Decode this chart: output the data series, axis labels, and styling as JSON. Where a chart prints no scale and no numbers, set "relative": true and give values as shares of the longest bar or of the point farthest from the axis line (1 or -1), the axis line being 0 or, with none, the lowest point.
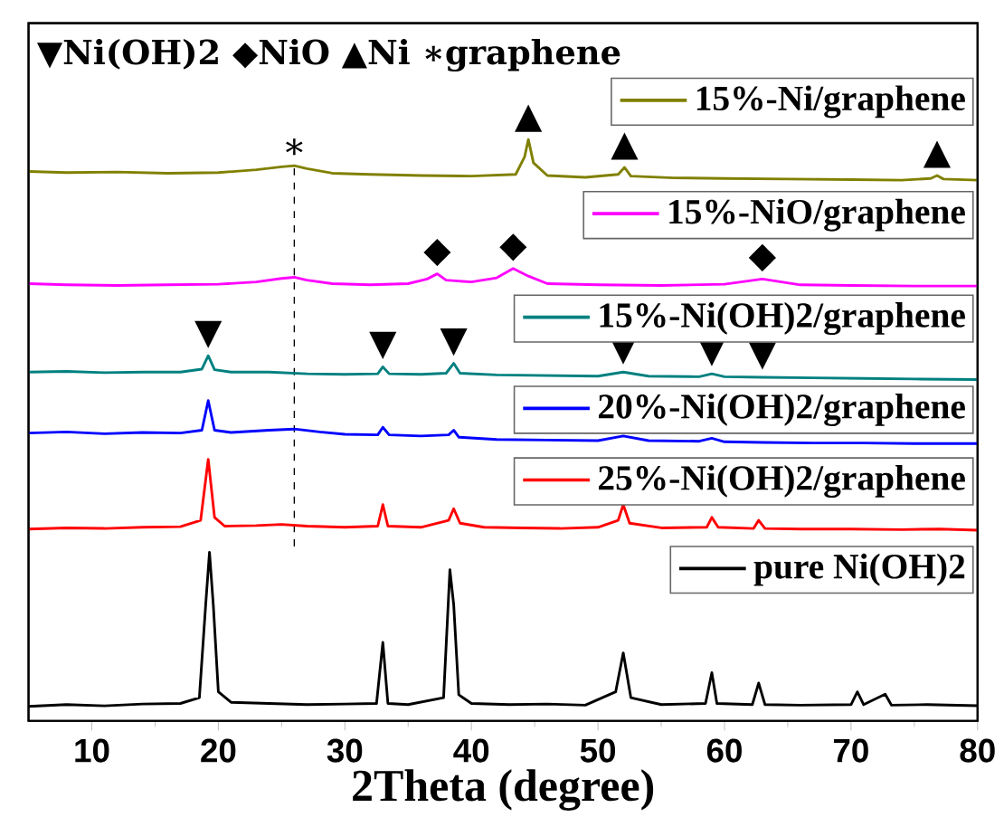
{
  "chart_data": {
    "type": "line",
    "relative": true,
    "xlabel": "2Theta (degree)",
    "xlim": [
      5,
      80
    ],
    "xticks": [
      10,
      20,
      30,
      40,
      50,
      60,
      70,
      80
    ],
    "ref_lines": [
      {
        "axis": "x",
        "value": 26,
        "line_style": "dashed",
        "color": "#000000"
      }
    ],
    "annotations": [
      "▼Ni(OH)2 ◆NiO ▲Ni ∗graphene",
      {
        "text": "∗",
        "x": 26,
        "y": 0.955
      },
      {
        "text": "▲",
        "x": 44.5,
        "y": 1.0
      },
      {
        "text": "▲",
        "x": 52.1,
        "y": 0.952
      },
      {
        "text": "▲",
        "x": 76.8,
        "y": 0.938
      },
      {
        "text": "◆",
        "x": 37.3,
        "y": 0.769
      },
      {
        "text": "◆",
        "x": 43.3,
        "y": 0.778
      },
      {
        "text": "◆",
        "x": 63,
        "y": 0.76
      },
      {
        "text": "▼",
        "x": 19.2,
        "y": 0.628
      },
      {
        "text": "▼",
        "x": 33,
        "y": 0.609
      },
      {
        "text": "▼",
        "x": 38.6,
        "y": 0.615
      },
      {
        "text": "▼",
        "x": 52,
        "y": 0.6
      },
      {
        "text": "▼",
        "x": 59,
        "y": 0.597
      },
      {
        "text": "▼",
        "x": 63,
        "y": 0.591
      }
    ],
    "legend": "right",
    "series": [
      {
        "name": "15%-Ni/graphene",
        "color": "#808000",
        "x": [
          5,
          8,
          12,
          16,
          20,
          23,
          25,
          26,
          27,
          29,
          32,
          36,
          40,
          43.5,
          44.2,
          44.5,
          44.9,
          46,
          49,
          51.6,
          52.1,
          52.6,
          56,
          60,
          65,
          70,
          74,
          76.3,
          76.8,
          77.3,
          80
        ],
        "values": [
          0.945,
          0.943,
          0.944,
          0.942,
          0.943,
          0.948,
          0.953,
          0.955,
          0.95,
          0.942,
          0.94,
          0.938,
          0.937,
          0.94,
          0.97,
          1.0,
          0.96,
          0.938,
          0.935,
          0.94,
          0.952,
          0.937,
          0.934,
          0.933,
          0.932,
          0.931,
          0.93,
          0.933,
          0.938,
          0.932,
          0.93
        ]
      },
      {
        "name": "15%-NiO/graphene",
        "color": "#ff00ff",
        "x": [
          5,
          8,
          12,
          16,
          20,
          23,
          25,
          26,
          27,
          29,
          32,
          35,
          36.5,
          37.3,
          38,
          40,
          42,
          43.3,
          44.5,
          46,
          50,
          55,
          60,
          63,
          66,
          70,
          75,
          80
        ],
        "values": [
          0.752,
          0.75,
          0.749,
          0.75,
          0.751,
          0.755,
          0.761,
          0.763,
          0.758,
          0.752,
          0.75,
          0.752,
          0.76,
          0.769,
          0.758,
          0.755,
          0.762,
          0.778,
          0.765,
          0.752,
          0.75,
          0.749,
          0.751,
          0.76,
          0.75,
          0.749,
          0.748,
          0.748
        ]
      },
      {
        "name": "15%-Ni(OH)2/graphene",
        "color": "#008080",
        "x": [
          5,
          8,
          11,
          14,
          17,
          18.7,
          19.2,
          19.7,
          21,
          24,
          27,
          30,
          32.6,
          33,
          33.5,
          36,
          38,
          38.6,
          39.1,
          42,
          46,
          50,
          52,
          54,
          58,
          59,
          60,
          63,
          67,
          71,
          75,
          80
        ],
        "values": [
          0.6,
          0.601,
          0.599,
          0.6,
          0.6,
          0.605,
          0.628,
          0.604,
          0.6,
          0.6,
          0.597,
          0.596,
          0.597,
          0.609,
          0.597,
          0.596,
          0.598,
          0.615,
          0.598,
          0.595,
          0.594,
          0.593,
          0.6,
          0.593,
          0.592,
          0.597,
          0.592,
          0.591,
          0.59,
          0.589,
          0.588,
          0.587
        ]
      },
      {
        "name": "20%-Ni(OH)2/graphene",
        "color": "#0000ff",
        "x": [
          5,
          8,
          11,
          14,
          17,
          18.7,
          19.2,
          19.7,
          21,
          24,
          26,
          28,
          30,
          32.6,
          33,
          33.5,
          36,
          38.2,
          38.6,
          39,
          42,
          46,
          50,
          52,
          54,
          58,
          59,
          60,
          63,
          67,
          71,
          75,
          80
        ],
        "values": [
          0.495,
          0.497,
          0.494,
          0.496,
          0.495,
          0.5,
          0.551,
          0.5,
          0.496,
          0.5,
          0.502,
          0.497,
          0.493,
          0.492,
          0.505,
          0.492,
          0.49,
          0.492,
          0.5,
          0.488,
          0.484,
          0.483,
          0.482,
          0.49,
          0.482,
          0.481,
          0.486,
          0.48,
          0.479,
          0.478,
          0.478,
          0.477,
          0.477
        ]
      },
      {
        "name": "25%-Ni(OH)2/graphene",
        "color": "#ff0000",
        "x": [
          5,
          8,
          11,
          14,
          17,
          18.6,
          19.2,
          19.7,
          20.5,
          23,
          25,
          27,
          30,
          32.6,
          33,
          33.4,
          36,
          38.2,
          38.6,
          39.1,
          41,
          44,
          47,
          50,
          51.6,
          52,
          52.5,
          55,
          58.6,
          59,
          59.5,
          62.3,
          62.7,
          63.2,
          66,
          70,
          74,
          77,
          80
        ],
        "values": [
          0.33,
          0.332,
          0.331,
          0.333,
          0.334,
          0.345,
          0.45,
          0.35,
          0.335,
          0.336,
          0.338,
          0.335,
          0.333,
          0.335,
          0.372,
          0.335,
          0.333,
          0.345,
          0.365,
          0.34,
          0.333,
          0.332,
          0.331,
          0.333,
          0.345,
          0.372,
          0.34,
          0.332,
          0.333,
          0.35,
          0.333,
          0.331,
          0.345,
          0.331,
          0.33,
          0.33,
          0.329,
          0.33,
          0.328
        ]
      },
      {
        "name": "pure Ni(OH)2",
        "color": "#000000",
        "x": [
          5,
          8,
          11,
          14,
          17,
          18.5,
          19,
          19.3,
          19.6,
          20,
          21,
          24,
          27,
          30,
          32.5,
          33,
          33.4,
          35,
          37.8,
          38.3,
          38.6,
          39,
          40,
          43,
          46,
          49,
          51.4,
          52,
          52.6,
          55,
          58.5,
          59,
          59.4,
          62.2,
          62.7,
          63.2,
          66,
          70,
          70.5,
          71,
          72.7,
          73.2,
          76,
          80
        ],
        "values": [
          0.025,
          0.028,
          0.026,
          0.029,
          0.03,
          0.04,
          0.2,
          0.29,
          0.2,
          0.05,
          0.032,
          0.03,
          0.028,
          0.029,
          0.03,
          0.135,
          0.03,
          0.028,
          0.04,
          0.26,
          0.2,
          0.045,
          0.03,
          0.028,
          0.029,
          0.027,
          0.05,
          0.117,
          0.04,
          0.028,
          0.03,
          0.083,
          0.03,
          0.028,
          0.065,
          0.028,
          0.027,
          0.028,
          0.05,
          0.028,
          0.046,
          0.027,
          0.028,
          0.026
        ]
      }
    ]
  }
}
